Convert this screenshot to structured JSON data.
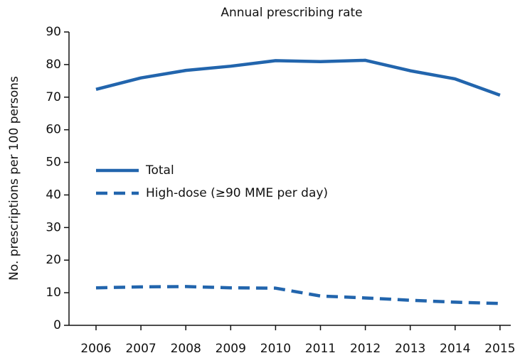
{
  "chart_data": {
    "type": "line",
    "title": "Annual prescribing rate",
    "y_label": "No. prescriptions per 100 persons",
    "categories": [
      "2006",
      "2007",
      "2008",
      "2009",
      "2010",
      "2011",
      "2012",
      "2013",
      "2014",
      "2015"
    ],
    "series": [
      {
        "name": "Total",
        "color": "#2265ad",
        "style": "solid",
        "values": [
          72.4,
          75.9,
          78.2,
          79.5,
          81.2,
          80.9,
          81.3,
          78.1,
          75.6,
          70.6
        ]
      },
      {
        "name": "High-dose (≥90 MME per day)",
        "color": "#2265ad",
        "style": "dashed",
        "values": [
          11.5,
          11.8,
          11.9,
          11.5,
          11.4,
          9.0,
          8.4,
          7.7,
          7.1,
          6.7
        ]
      }
    ],
    "ylim": [
      0,
      90
    ],
    "yticks": [
      0,
      10,
      20,
      30,
      40,
      50,
      60,
      70,
      80,
      90
    ],
    "grid": false
  }
}
